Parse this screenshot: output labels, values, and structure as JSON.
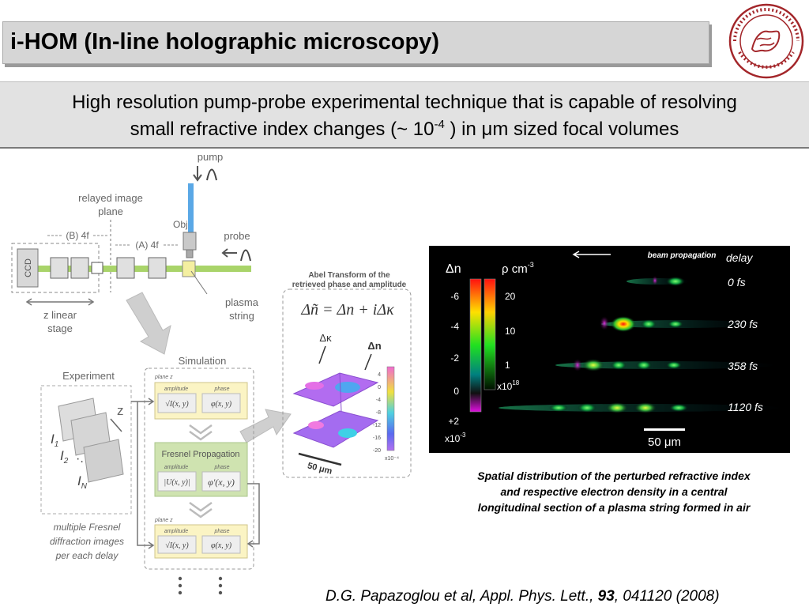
{
  "title": "i-HOM  (In-line holographic microscopy)",
  "subtitle": {
    "line1": "High resolution pump-probe experimental technique that is capable of resolving",
    "line2_before": "small refractive index changes (~ 10",
    "line2_exp": "-4",
    "line2_mid": " ) in ",
    "line2_mu": "μ",
    "line2_after": "m sized focal volumes"
  },
  "setup": {
    "pump": "pump",
    "relayed_1": "relayed image",
    "relayed_2": "plane",
    "b4f": "(B) 4f",
    "a4f": "(A) 4f",
    "obj": "Obj",
    "probe": "probe",
    "ccd": "CCD",
    "zstage_1": "z linear",
    "zstage_2": "stage",
    "plasma_1": "plasma",
    "plasma_2": "string",
    "abel_1": "Abel Transform of the",
    "abel_2": "retrieved phase and amplitude",
    "equation": "Δñ = Δn + iΔκ",
    "dk": "Δκ",
    "dn": "Δn",
    "ticks": [
      "4",
      "0",
      "-4",
      "-8",
      "-12",
      "-16",
      "-20"
    ],
    "tick_exp": "x10⁻⁴",
    "scale_3d": "50 μm",
    "simulation": "Simulation",
    "experiment": "Experiment",
    "plane_z": "plane z",
    "amplitude": "amplitude",
    "phase": "phase",
    "amp_formula": "√I(x, y)",
    "phase_formula": "φ(x, y)",
    "fresnel": "Fresnel Propagation",
    "u_formula": "|U(x, y)|",
    "phi_formula": "φ'(x, y)",
    "plane_z1": "plane z",
    "amp1_formula": "√I(x, y)",
    "phase1_formula": "φ(x, y)",
    "z_label": "z",
    "i1": "I",
    "i2": "I",
    "in": "I",
    "mf_1": "multiple Fresnel",
    "mf_2": "diffraction images",
    "mf_3": "per each delay"
  },
  "plot": {
    "dn_label": "Δn",
    "rho_label": "ρ cm",
    "rho_exp": "-3",
    "beam_propagation": "beam propagation",
    "delay_label": "delay",
    "dn_ticks": [
      "-6",
      "-4",
      "-2",
      "0",
      "+2"
    ],
    "dn_mult": "x10",
    "dn_mult_exp": "-3",
    "rho_ticks": [
      "20",
      "10",
      "1"
    ],
    "rho_mult": "x10",
    "rho_mult_exp": "18",
    "delays": [
      "0 fs",
      "230 fs",
      "358 fs",
      "1120 fs"
    ],
    "scale_bar": "50 μm"
  },
  "colors": {
    "title_bg": "#d6d6d6",
    "subtitle_bg": "#e2e2e2",
    "plot_bg": "#000000",
    "seal": "#a3262a",
    "sim_box": "#fbf4c4",
    "fresnel_box": "#cfe3b0"
  },
  "caption": {
    "line1": "Spatial distribution of the perturbed refractive index",
    "line2": "and respective electron density in a central",
    "line3": "longitudinal section of a plasma string formed in air"
  },
  "citation": {
    "before": "D.G. Papazoglou et al, Appl. Phys. Lett., ",
    "volume": "93",
    "after": ",  041120 (2008)"
  }
}
